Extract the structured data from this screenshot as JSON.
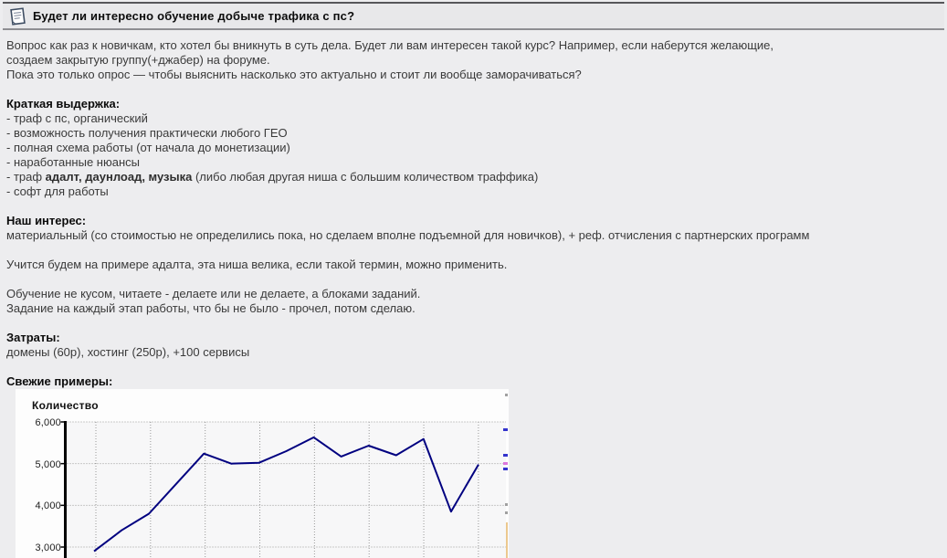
{
  "page": {
    "background_color": "#ededef",
    "panel_color": "#fdfdfd"
  },
  "header": {
    "title": "Будет ли интересно обучение добыче трафика с пс?",
    "icon": "document-icon"
  },
  "post": {
    "intro_line1": "Вопрос как раз к новичкам, кто хотел бы вникнуть в суть дела. Будет ли вам интересен такой курс? Например, если наберутся желающие,",
    "intro_line2": "создаем закрытую группу(+джабер) на форуме.",
    "intro_line3": "Пока это только опрос — чтобы выяснить насколько это актуально и стоит ли вообще заморачиваться?",
    "excerpt": {
      "heading": "Краткая выдержка:",
      "item1": "- траф с пс, органический",
      "item2": "- возможность получения практически любого ГЕО",
      "item3": "- полная схема работы (от начала до монетизации)",
      "item4": "- наработанные нюансы",
      "item5_pre": "- траф ",
      "item5_bold": "адалт, даунлоад, музыка",
      "item5_post": " (либо любая другая ниша с большим количеством траффика)",
      "item6": "- софт для работы"
    },
    "interest": {
      "heading": "Наш интерес:",
      "text": "материальный (со стоимостью не определились пока, но сделаем вполне подъемной для новичков), + реф. отчисления с партнерских программ"
    },
    "study_text": "Учится будем на примере адалта, эта ниша велика, если такой термин, можно применить.",
    "method_line1": "Обучение не кусом, читаете - делаете или не делаете, а блоками заданий.",
    "method_line2": "Задание на каждый этап работы, что бы не было - прочел, потом сделаю.",
    "costs": {
      "heading": "Затраты:",
      "text": "домены (60р), хостинг (250р), +100 сервисы"
    },
    "examples_heading": "Свежие примеры:"
  },
  "chart_data": {
    "type": "line",
    "title": "Количество",
    "values": [
      2900,
      3400,
      3800,
      4520,
      5240,
      5000,
      5020,
      5300,
      5630,
      5170,
      5430,
      5200,
      5590,
      3850,
      4980
    ],
    "ytick_values": [
      6000,
      5000,
      4000,
      3000
    ],
    "ytick_labels": [
      "6,000",
      "5,000",
      "4,000",
      "3,000"
    ],
    "ylim": [
      3000,
      6000
    ],
    "x_axis_labels_visible": false,
    "grid": "dotted",
    "legend": "none",
    "colors": {
      "line": "#000080",
      "grid": "#999999",
      "axis": "#000000",
      "plot_bg": "#f7f7f8"
    },
    "edge_fragments": [
      {
        "y": 5,
        "h": 3,
        "w": 3,
        "color": "#a0a0a0"
      },
      {
        "y": 43,
        "h": 3,
        "w": 5,
        "color": "#3333cc"
      },
      {
        "y": 71,
        "h": 3,
        "w": 5,
        "color": "#3333cc"
      },
      {
        "y": 80,
        "h": 3,
        "w": 5,
        "color": "#dd77dd"
      },
      {
        "y": 86,
        "h": 3,
        "w": 5,
        "color": "#3333cc"
      },
      {
        "y": 125,
        "h": 3,
        "w": 3,
        "color": "#a0a0a0"
      },
      {
        "y": 134,
        "h": 3,
        "w": 3,
        "color": "#a0a0a0"
      },
      {
        "y": 146,
        "h": 39,
        "w": 2,
        "color": "#ecc88e"
      }
    ]
  }
}
